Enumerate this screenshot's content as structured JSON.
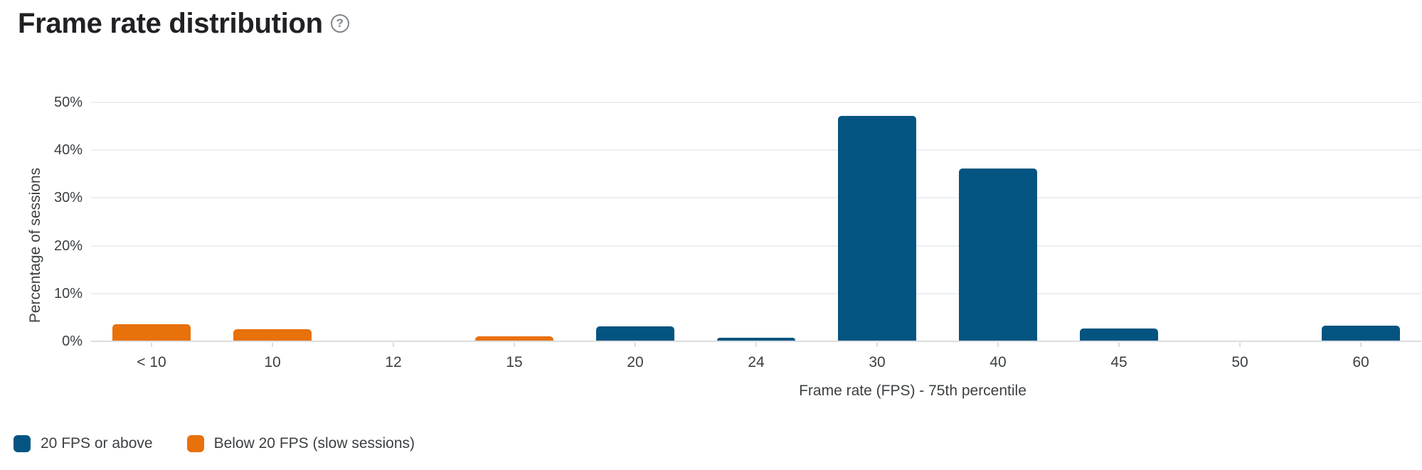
{
  "header": {
    "title": "Frame rate distribution",
    "help_glyph": "?"
  },
  "chart_data": {
    "type": "bar",
    "title": "Frame rate distribution",
    "xlabel": "Frame rate (FPS) - 75th percentile",
    "ylabel": "Percentage of sessions",
    "ylim": [
      0,
      50
    ],
    "ytick_step": 10,
    "ytick_labels": [
      "0%",
      "10%",
      "20%",
      "30%",
      "40%",
      "50%"
    ],
    "grid": true,
    "legend_position": "bottom-left",
    "categories": [
      "< 10",
      "10",
      "12",
      "15",
      "20",
      "24",
      "30",
      "40",
      "45",
      "50",
      "60"
    ],
    "series": [
      {
        "name": "20 FPS or above",
        "color": "#045481",
        "values": [
          0,
          0,
          0,
          0,
          3.0,
          0.6,
          47,
          36,
          2.6,
          0,
          3.1
        ]
      },
      {
        "name": "Below 20 FPS (slow sessions)",
        "color": "#e8710a",
        "values": [
          3.4,
          2.4,
          0,
          0.9,
          0,
          0,
          0,
          0,
          0,
          0,
          0
        ]
      }
    ]
  }
}
